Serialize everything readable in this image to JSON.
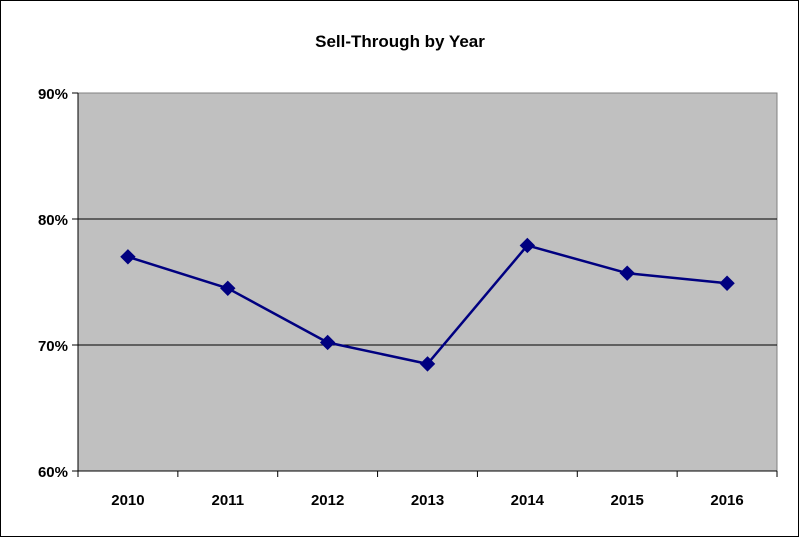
{
  "chart_data": {
    "type": "line",
    "title": "Sell-Through by Year",
    "xlabel": "",
    "ylabel": "",
    "categories": [
      "2010",
      "2011",
      "2012",
      "2013",
      "2014",
      "2015",
      "2016"
    ],
    "series": [
      {
        "values": [
          0.77,
          0.745,
          0.702,
          0.685,
          0.779,
          0.757,
          0.749
        ]
      }
    ],
    "ylim": [
      0.6,
      0.9
    ],
    "yticks": [
      0.6,
      0.7,
      0.8,
      0.9
    ],
    "ytick_labels": [
      "60%",
      "70%",
      "80%",
      "90%"
    ],
    "grid": true,
    "legend": "none",
    "colors": {
      "plot_background": "#c0c0c0",
      "line": "#000080",
      "marker": "#000080",
      "gridline": "#000000"
    }
  }
}
